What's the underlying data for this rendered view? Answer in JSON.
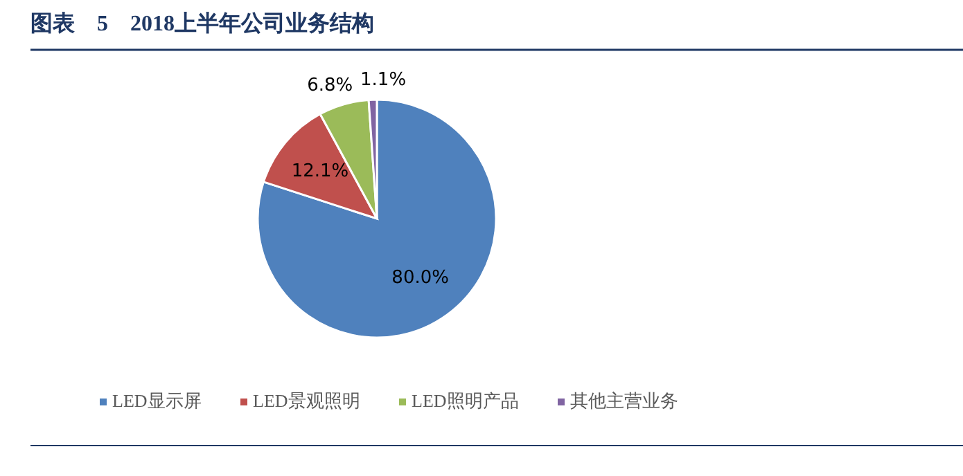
{
  "chart_data": {
    "type": "pie",
    "title": "图表　5　2018上半年公司业务结构",
    "categories": [
      "LED显示屏",
      "LED景观照明",
      "LED照明产品",
      "其他主营业务"
    ],
    "values": [
      80.0,
      12.1,
      6.8,
      1.1
    ],
    "colors": [
      "#4f81bd",
      "#c0504d",
      "#9bbb59",
      "#8064a2"
    ],
    "value_labels": [
      "80.0%",
      "12.1%",
      "6.8%",
      "1.1%"
    ],
    "legend": "bottom"
  }
}
